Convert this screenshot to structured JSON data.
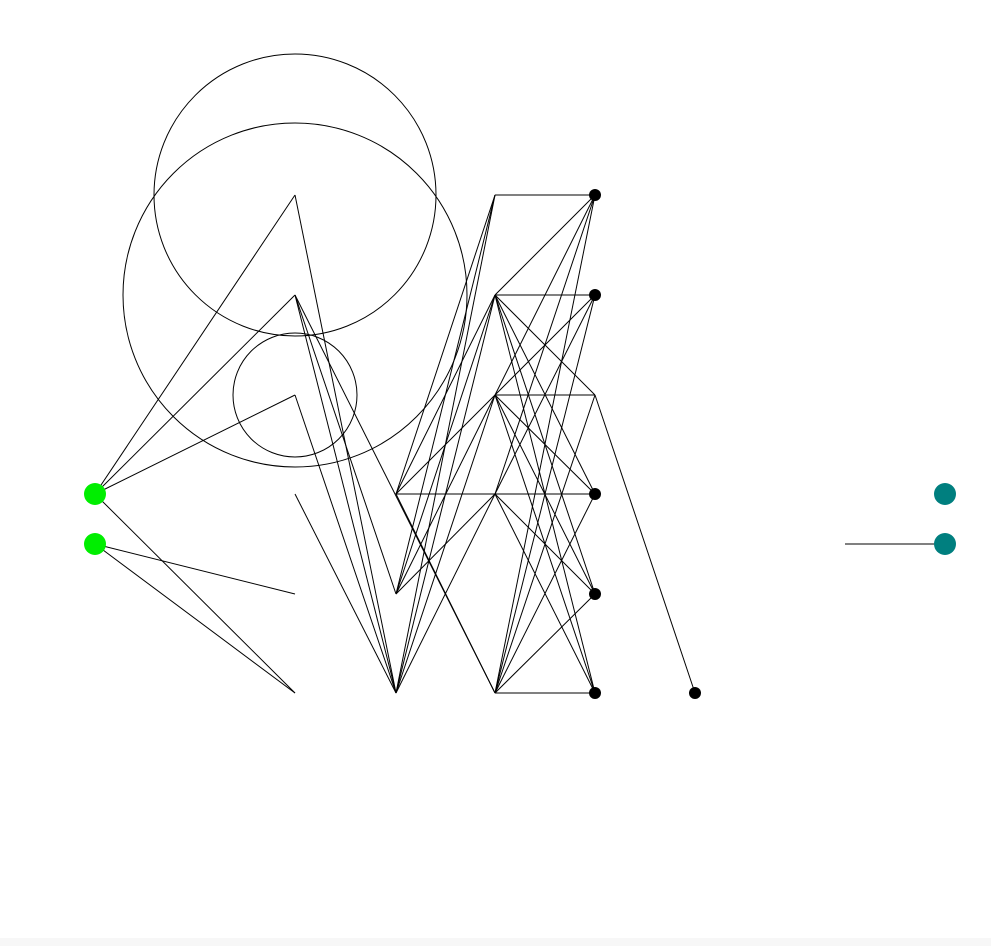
{
  "diagram": {
    "type": "network-topology",
    "colors": {
      "background": "#ffffff",
      "edge": "#000000",
      "node_default": "#000000",
      "input_node": "#00ee00",
      "output_node": "#007f7f"
    },
    "nodes": [
      {
        "id": "in0",
        "color": "#00ee00"
      },
      {
        "id": "in1",
        "color": "#00ee00"
      },
      {
        "id": "h1a"
      },
      {
        "id": "h1b"
      },
      {
        "id": "h1c"
      },
      {
        "id": "h1d"
      },
      {
        "id": "h1e"
      },
      {
        "id": "h1f"
      },
      {
        "id": "h2a"
      },
      {
        "id": "h2b"
      },
      {
        "id": "h2c"
      },
      {
        "id": "h3a"
      },
      {
        "id": "h3b"
      },
      {
        "id": "h3c"
      },
      {
        "id": "h3d"
      },
      {
        "id": "h3e"
      },
      {
        "id": "h4a"
      },
      {
        "id": "h4b"
      },
      {
        "id": "h4c"
      },
      {
        "id": "h4d"
      },
      {
        "id": "h4e"
      },
      {
        "id": "h4f"
      },
      {
        "id": "h5a"
      },
      {
        "id": "h6a"
      },
      {
        "id": "out0",
        "color": "#007f7f"
      },
      {
        "id": "out1",
        "color": "#007f7f"
      }
    ]
  }
}
